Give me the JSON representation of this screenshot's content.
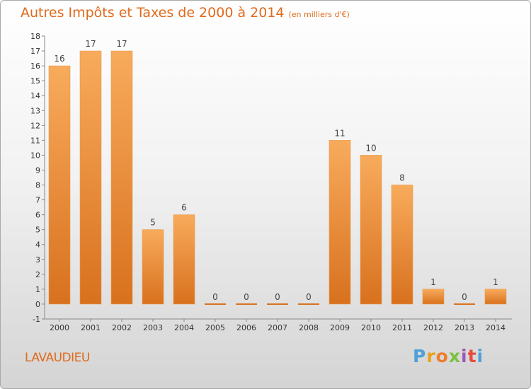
{
  "title": "Autres Impôts et Taxes de 2000 à 2014",
  "unit": "(en milliers d'€)",
  "place": "LAVAUDIEU",
  "logo": [
    "P",
    "r",
    "o",
    "x",
    "i",
    "t",
    "i"
  ],
  "colors": {
    "accent": "#e06a1c",
    "bar_light": "#f8ab5c",
    "bar_dark": "#d8711e",
    "logo": [
      "#4f9fd8",
      "#e8a21c",
      "#ee7d2b",
      "#7cc043",
      "#9b59b6",
      "#e84b3c",
      "#4f9fd8"
    ]
  },
  "chart_data": {
    "type": "bar",
    "title": "Autres Impôts et Taxes de 2000 à 2014",
    "ylabel": "",
    "xlabel": "",
    "ylim": [
      -1,
      18
    ],
    "yticks": [
      -1,
      0,
      1,
      2,
      3,
      4,
      5,
      6,
      7,
      8,
      9,
      10,
      11,
      12,
      13,
      14,
      15,
      16,
      17,
      18
    ],
    "ytick_labels": [
      "-1",
      "0",
      "1",
      "2",
      "3",
      "4",
      "5",
      "6",
      "7",
      "8",
      "9",
      "10",
      "11",
      "12",
      "13",
      "14",
      "15",
      "16",
      "17",
      "18"
    ],
    "categories": [
      "2000",
      "2001",
      "2002",
      "2003",
      "2004",
      "2005",
      "2006",
      "2007",
      "2008",
      "2009",
      "2010",
      "2011",
      "2012",
      "2013",
      "2014"
    ],
    "values": [
      16,
      17,
      17,
      5,
      6,
      0,
      0,
      0,
      0,
      11,
      10,
      8,
      1,
      0,
      1
    ],
    "grid": false
  }
}
